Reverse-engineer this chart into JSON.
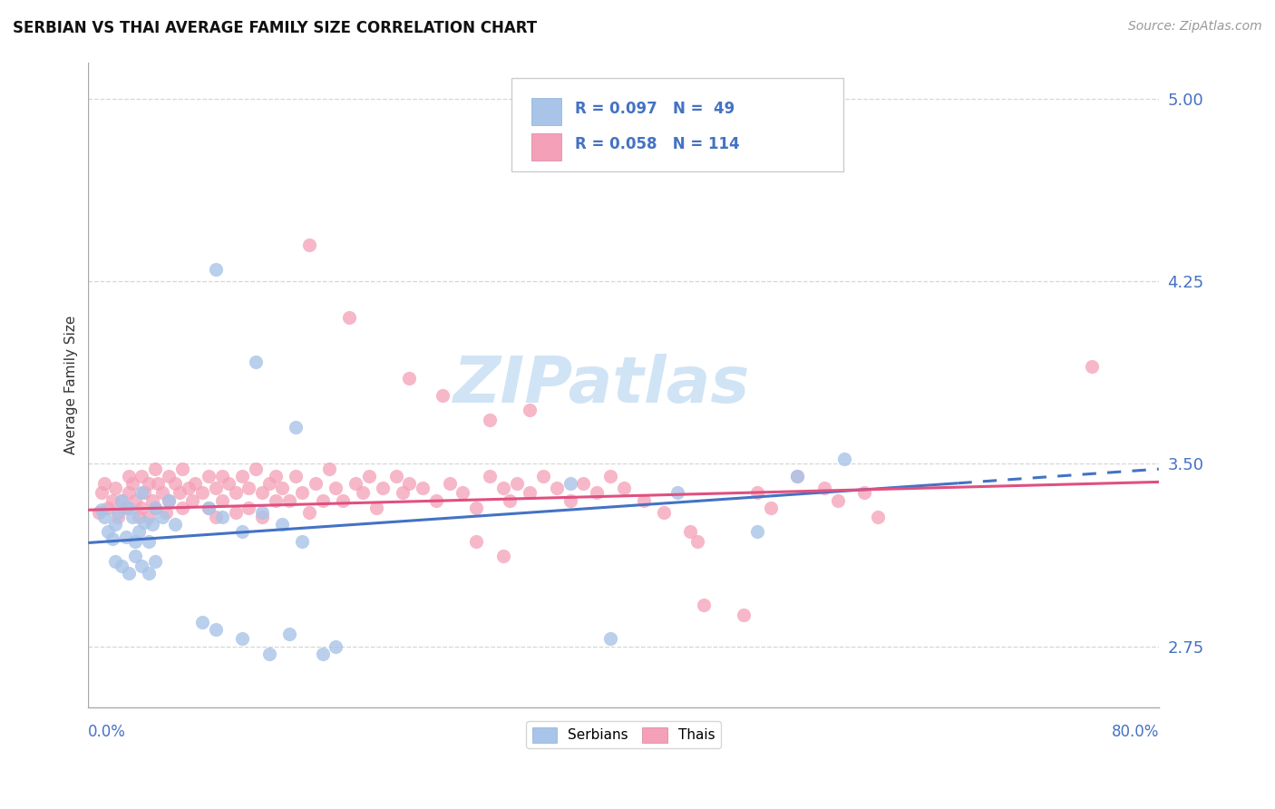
{
  "title": "SERBIAN VS THAI AVERAGE FAMILY SIZE CORRELATION CHART",
  "source": "Source: ZipAtlas.com",
  "ylabel": "Average Family Size",
  "yticks": [
    2.75,
    3.5,
    4.25,
    5.0
  ],
  "xmin": 0.0,
  "xmax": 0.8,
  "ymin": 2.5,
  "ymax": 5.15,
  "r_serbian": 0.097,
  "n_serbian": 49,
  "r_thai": 0.058,
  "n_thai": 114,
  "color_serbian": "#a8c4e8",
  "color_serbian_line": "#4472c4",
  "color_thai": "#f4a0b8",
  "color_thai_line": "#e05080",
  "color_axis_label": "#4472c4",
  "serb_line_x0": 0.0,
  "serb_line_y0": 3.175,
  "serb_line_x1": 0.65,
  "serb_line_y1": 3.42,
  "serb_line_dash_x0": 0.65,
  "serb_line_dash_y0": 3.42,
  "serb_line_dash_x1": 0.8,
  "serb_line_dash_y1": 3.478,
  "thai_line_x0": 0.0,
  "thai_line_y0": 3.31,
  "thai_line_x1": 0.8,
  "thai_line_y1": 3.425,
  "legend_r_color": "#4472c4",
  "legend_n_color": "#4472c4",
  "watermark_color": "#d0e4f5"
}
